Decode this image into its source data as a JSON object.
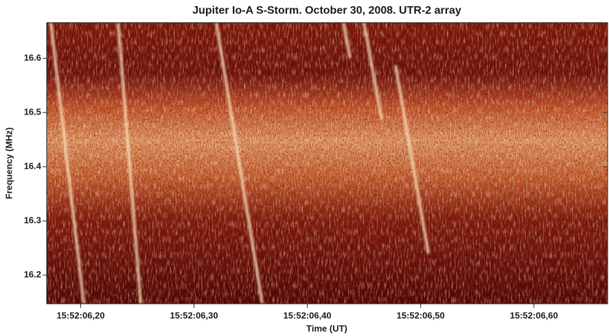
{
  "chart_data": {
    "type": "spectrogram",
    "title": "Jupiter Io-A S-Storm. October 30, 2008. UTR-2 array",
    "x_label": "Time (UT)",
    "y_label": "Frequency (MHz)",
    "xlim": [
      6.17,
      6.665
    ],
    "xticks": [
      {
        "value": 6.2,
        "label": "15:52:06,20"
      },
      {
        "value": 6.3,
        "label": "15:52:06,30"
      },
      {
        "value": 6.4,
        "label": "15:52:06,40"
      },
      {
        "value": 6.5,
        "label": "15:52:06,50"
      },
      {
        "value": 6.6,
        "label": "15:52:06,60"
      }
    ],
    "ylim": [
      16.147,
      16.666
    ],
    "yticks": [
      16.2,
      16.3,
      16.4,
      16.5,
      16.6
    ],
    "grid": false
  }
}
